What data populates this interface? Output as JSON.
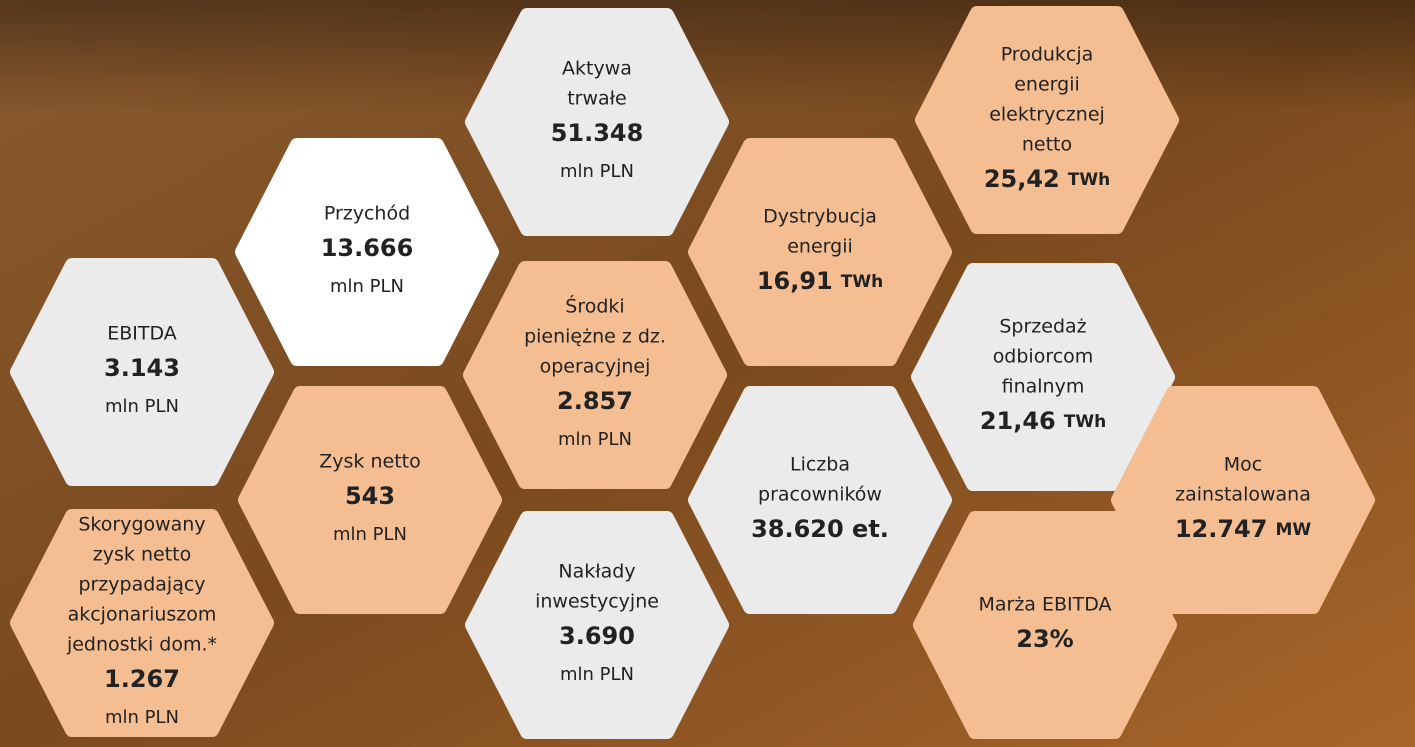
{
  "tiles": [
    {
      "label": [
        "Aktywa",
        "trwałe"
      ],
      "value": "51.348",
      "unit": "mln PLN"
    },
    {
      "label": [
        "Produkcja",
        "energii",
        "elektrycznej",
        "netto"
      ],
      "value": "25,42",
      "unit": "TWh"
    },
    {
      "label": [
        "Przychód"
      ],
      "value": "13.666",
      "unit": "mln PLN"
    },
    {
      "label": [
        "Dystrybucja",
        "energii"
      ],
      "value": "16,91",
      "unit": "TWh"
    },
    {
      "label": [
        "EBITDA"
      ],
      "value": "3.143",
      "unit": "mln PLN"
    },
    {
      "label": [
        "Środki",
        "pieniężne z dz.",
        "operacyjnej"
      ],
      "value": "2.857",
      "unit": "mln PLN"
    },
    {
      "label": [
        "Sprzedaż",
        "odbiorcom",
        "finalnym"
      ],
      "value": "21,46",
      "unit": "TWh"
    },
    {
      "label": [
        "Zysk netto"
      ],
      "value": "543",
      "unit": "mln PLN"
    },
    {
      "label": [
        "Liczba",
        "pracowników"
      ],
      "value": "38.620 et."
    },
    {
      "label": [
        "Moc",
        "zainstalowana"
      ],
      "value": "12.747",
      "unit": "MW"
    },
    {
      "label": [
        "Skorygowany",
        "zysk netto",
        "przypadający",
        "akcjonariuszom",
        "jednostki dom.*"
      ],
      "value": "1.267",
      "unit": "mln PLN"
    },
    {
      "label": [
        "Nakłady",
        "inwestycyjne"
      ],
      "value": "3.690",
      "unit": "mln PLN"
    },
    {
      "label": [
        "Marża EBITDA"
      ],
      "value": "23%"
    }
  ]
}
